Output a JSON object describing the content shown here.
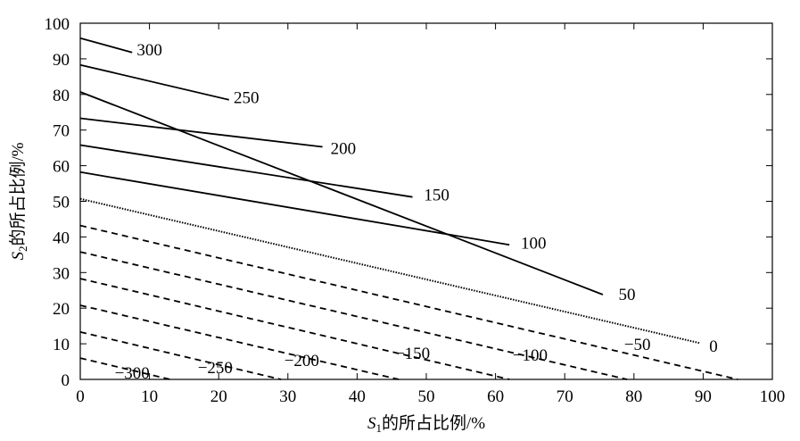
{
  "chart_data": {
    "type": "line",
    "subtype": "contour",
    "title": "",
    "xlabel": {
      "var": "S",
      "sub": "1",
      "rest": "的所占比例/%"
    },
    "ylabel": {
      "var": "S",
      "sub": "2",
      "rest": "的所占比例/%"
    },
    "xlim": [
      0,
      100
    ],
    "ylim": [
      0,
      100
    ],
    "xticks": [
      "0",
      "10",
      "20",
      "30",
      "40",
      "50",
      "60",
      "70",
      "80",
      "90",
      "100"
    ],
    "yticks": [
      "0",
      "10",
      "20",
      "30",
      "40",
      "50",
      "60",
      "70",
      "80",
      "90",
      "100"
    ],
    "grid": false,
    "line_colors": {
      "line": "#000000",
      "axis": "#000000"
    },
    "contours": [
      {
        "level": "300",
        "label": "300",
        "style": "solid",
        "x": [
          0,
          7.5
        ],
        "y": [
          95.8,
          91.8
        ],
        "label_at": [
          10,
          92.7
        ]
      },
      {
        "level": "250",
        "label": "250",
        "style": "solid",
        "x": [
          0,
          21.5
        ],
        "y": [
          88.3,
          78.5
        ],
        "label_at": [
          24,
          79.3
        ]
      },
      {
        "level": "200",
        "label": "200",
        "style": "solid",
        "x": [
          0,
          35
        ],
        "y": [
          73.3,
          65.3
        ],
        "label_at": [
          38,
          65.0
        ]
      },
      {
        "level": "150",
        "label": "150",
        "style": "solid",
        "x": [
          0,
          48
        ],
        "y": [
          65.8,
          51.2
        ],
        "label_at": [
          51.5,
          52.0
        ]
      },
      {
        "level": "100",
        "label": "100",
        "style": "solid",
        "x": [
          0,
          62
        ],
        "y": [
          58.2,
          37.8
        ],
        "label_at": [
          65.5,
          38.5
        ]
      },
      {
        "level": "50",
        "label": "50",
        "style": "solid",
        "x": [
          0,
          75.5
        ],
        "y": [
          80.7,
          23.8
        ],
        "label_at": [
          79,
          24.0
        ]
      },
      {
        "level": "0",
        "label": "0",
        "style": "dotted",
        "x": [
          0,
          89.5
        ],
        "y": [
          50.7,
          10.2
        ],
        "label_at": [
          91.5,
          9.5
        ]
      },
      {
        "level": "-50",
        "label": "−50",
        "style": "dashed",
        "x": [
          0,
          95
        ],
        "y": [
          43.2,
          0
        ],
        "label_at": [
          80.5,
          10.0
        ]
      },
      {
        "level": "-100",
        "label": "−100",
        "style": "dashed",
        "x": [
          0,
          79
        ],
        "y": [
          35.8,
          0
        ],
        "label_at": [
          65,
          7.0
        ]
      },
      {
        "level": "-150",
        "label": "−150",
        "style": "dashed",
        "x": [
          0,
          62
        ],
        "y": [
          28.3,
          0
        ],
        "label_at": [
          48,
          7.5
        ]
      },
      {
        "level": "-200",
        "label": "−200",
        "style": "dashed",
        "x": [
          0,
          46
        ],
        "y": [
          20.8,
          0
        ],
        "label_at": [
          32,
          5.5
        ]
      },
      {
        "level": "-250",
        "label": "−250",
        "style": "dashed",
        "x": [
          0,
          29
        ],
        "y": [
          13.3,
          0
        ],
        "label_at": [
          19.5,
          3.5
        ]
      },
      {
        "level": "-300",
        "label": "−300",
        "style": "dashed",
        "x": [
          0,
          13
        ],
        "y": [
          6.0,
          0
        ],
        "label_at": [
          7.5,
          2.0
        ]
      }
    ]
  }
}
